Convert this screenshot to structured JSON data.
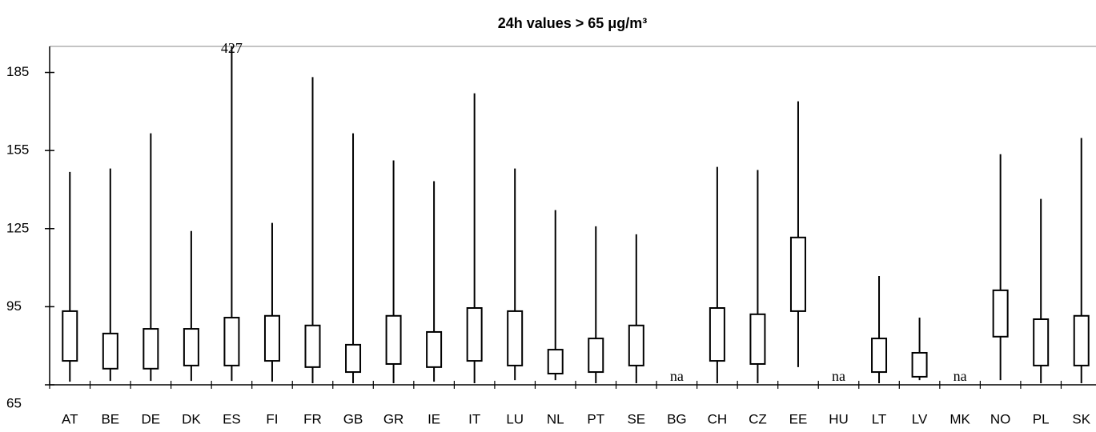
{
  "chart_data": {
    "type": "box",
    "title": "24h values > 65 μg/m³",
    "categories": [
      "AT",
      "BE",
      "DE",
      "DK",
      "ES",
      "FI",
      "FR",
      "GB",
      "GR",
      "IE",
      "IT",
      "LU",
      "NL",
      "PT",
      "SE",
      "BG",
      "CH",
      "CZ",
      "EE",
      "HU",
      "LT",
      "LV",
      "MK",
      "NO",
      "PL",
      "SK"
    ],
    "low": [
      66.2,
      66.5,
      66.5,
      66.5,
      66.5,
      66.2,
      65.6,
      65.6,
      65.6,
      66.2,
      65.6,
      66.8,
      66.8,
      65.6,
      65.6,
      null,
      65.6,
      65.6,
      71.8,
      null,
      65.6,
      66.8,
      null,
      66.8,
      65.6,
      65.6
    ],
    "q1": [
      74.2,
      71.2,
      71.2,
      72.4,
      72.4,
      74.2,
      71.8,
      69.9,
      73.0,
      71.8,
      74.2,
      72.4,
      69.3,
      69.9,
      72.4,
      null,
      74.2,
      73.0,
      93.3,
      null,
      69.9,
      68.1,
      null,
      83.5,
      72.4,
      72.4
    ],
    "q3": [
      93.3,
      84.7,
      86.5,
      86.5,
      90.8,
      91.5,
      87.8,
      80.4,
      91.5,
      85.3,
      94.5,
      93.3,
      78.5,
      82.8,
      87.8,
      null,
      94.5,
      92.1,
      121.6,
      null,
      82.8,
      77.3,
      null,
      101.3,
      90.2,
      91.5
    ],
    "high": [
      146.8,
      148.1,
      161.6,
      124.1,
      427,
      127.2,
      183.2,
      161.6,
      151.2,
      143.2,
      177.0,
      148.1,
      132.1,
      125.9,
      122.8,
      null,
      148.7,
      147.5,
      173.9,
      null,
      106.8,
      90.8,
      null,
      153.6,
      136.4,
      159.8
    ],
    "missing_label": "na",
    "ylim": [
      65,
      195
    ],
    "yticks": [
      65,
      95,
      125,
      155,
      185
    ],
    "color": "#000000"
  }
}
